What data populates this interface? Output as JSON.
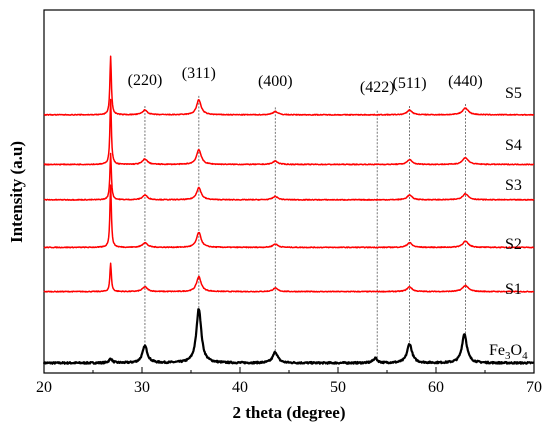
{
  "chart_data": {
    "type": "line",
    "title": "",
    "xlabel": "2 theta (degree)",
    "ylabel": "Intensity (a.u)",
    "xlim": [
      20,
      70
    ],
    "xticks": [
      20,
      30,
      40,
      50,
      60,
      70
    ],
    "grid": false,
    "legend": "none",
    "peak_labels": [
      {
        "label": "(220)",
        "x": 30.3
      },
      {
        "label": "(311)",
        "x": 35.8
      },
      {
        "label": "(400)",
        "x": 43.6
      },
      {
        "label": "(422)",
        "x": 54.0
      },
      {
        "label": "(511)",
        "x": 57.3
      },
      {
        "label": "(440)",
        "x": 63.0
      }
    ],
    "series": [
      {
        "name": "Fe3O4",
        "name_main": "Fe",
        "name_sub1": "3",
        "name_mid": "O",
        "name_sub2": "4",
        "color": "#000000",
        "baseline": 0,
        "peaks": [
          [
            26.8,
            0.06,
            0.2
          ],
          [
            30.3,
            0.25,
            0.3
          ],
          [
            35.8,
            0.8,
            0.3
          ],
          [
            43.6,
            0.16,
            0.3
          ],
          [
            53.8,
            0.07,
            0.25
          ],
          [
            57.3,
            0.28,
            0.3
          ],
          [
            62.9,
            0.43,
            0.3
          ]
        ]
      },
      {
        "name": "S1",
        "color": "#ff0000",
        "baseline": 1.05,
        "peaks": [
          [
            26.8,
            0.42,
            0.09
          ],
          [
            30.3,
            0.07,
            0.3
          ],
          [
            35.8,
            0.22,
            0.28
          ],
          [
            43.6,
            0.05,
            0.3
          ],
          [
            57.3,
            0.07,
            0.3
          ],
          [
            63.0,
            0.09,
            0.35
          ]
        ]
      },
      {
        "name": "S2",
        "color": "#ff0000",
        "baseline": 1.7,
        "peaks": [
          [
            26.8,
            0.92,
            0.09
          ],
          [
            30.3,
            0.07,
            0.3
          ],
          [
            35.8,
            0.22,
            0.28
          ],
          [
            43.6,
            0.05,
            0.3
          ],
          [
            57.3,
            0.07,
            0.3
          ],
          [
            63.0,
            0.09,
            0.35
          ]
        ]
      },
      {
        "name": "S3",
        "color": "#ff0000",
        "baseline": 2.4,
        "peaks": [
          [
            26.8,
            0.68,
            0.09
          ],
          [
            30.3,
            0.07,
            0.3
          ],
          [
            35.8,
            0.18,
            0.28
          ],
          [
            43.6,
            0.05,
            0.3
          ],
          [
            57.3,
            0.07,
            0.3
          ],
          [
            63.0,
            0.09,
            0.35
          ]
        ]
      },
      {
        "name": "S4",
        "color": "#ff0000",
        "baseline": 2.92,
        "peaks": [
          [
            26.8,
            0.95,
            0.09
          ],
          [
            30.3,
            0.08,
            0.3
          ],
          [
            35.8,
            0.22,
            0.28
          ],
          [
            43.6,
            0.05,
            0.3
          ],
          [
            57.3,
            0.07,
            0.3
          ],
          [
            63.0,
            0.1,
            0.35
          ]
        ]
      },
      {
        "name": "S5",
        "color": "#ff0000",
        "baseline": 3.65,
        "peaks": [
          [
            26.8,
            0.86,
            0.09
          ],
          [
            30.3,
            0.07,
            0.3
          ],
          [
            35.8,
            0.22,
            0.28
          ],
          [
            43.6,
            0.05,
            0.3
          ],
          [
            57.3,
            0.07,
            0.3
          ],
          [
            63.0,
            0.1,
            0.35
          ]
        ]
      }
    ]
  }
}
